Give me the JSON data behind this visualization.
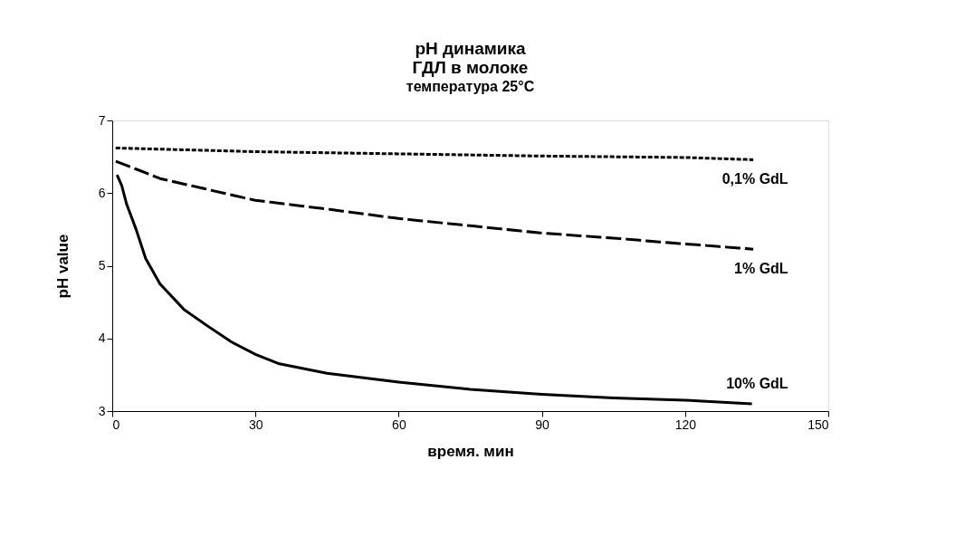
{
  "chart_data": {
    "type": "line",
    "title": [
      "pH динамика",
      "ГДЛ в молоке"
    ],
    "subtitle": "температура 25°C",
    "xlabel": "время. мин",
    "ylabel": "pH value",
    "xlim": [
      0,
      150
    ],
    "xticks": [
      0,
      30,
      60,
      90,
      120,
      150
    ],
    "ylim": [
      3,
      7
    ],
    "yticks": [
      3,
      4,
      5,
      6,
      7
    ],
    "grid": false,
    "marker": "none",
    "series": [
      {
        "name": "0,1% GdL",
        "color": "#000000",
        "line_style": "dotted",
        "x": [
          1,
          30,
          60,
          90,
          120,
          134
        ],
        "values": [
          6.62,
          6.57,
          6.54,
          6.51,
          6.49,
          6.46
        ]
      },
      {
        "name": "1% GdL",
        "color": "#000000",
        "line_style": "dashed",
        "x": [
          1,
          5,
          10,
          20,
          30,
          45,
          60,
          75,
          90,
          105,
          120,
          134
        ],
        "values": [
          6.43,
          6.33,
          6.2,
          6.05,
          5.9,
          5.78,
          5.65,
          5.55,
          5.45,
          5.38,
          5.3,
          5.23
        ]
      },
      {
        "name": "10% GdL",
        "color": "#000000",
        "line_style": "solid",
        "x": [
          1,
          2,
          3,
          5,
          7,
          10,
          15,
          20,
          25,
          30,
          35,
          45,
          60,
          75,
          90,
          105,
          120,
          134
        ],
        "values": [
          6.25,
          6.1,
          5.85,
          5.5,
          5.1,
          4.75,
          4.4,
          4.17,
          3.95,
          3.78,
          3.65,
          3.52,
          3.4,
          3.3,
          3.23,
          3.18,
          3.15,
          3.1
        ]
      }
    ]
  }
}
